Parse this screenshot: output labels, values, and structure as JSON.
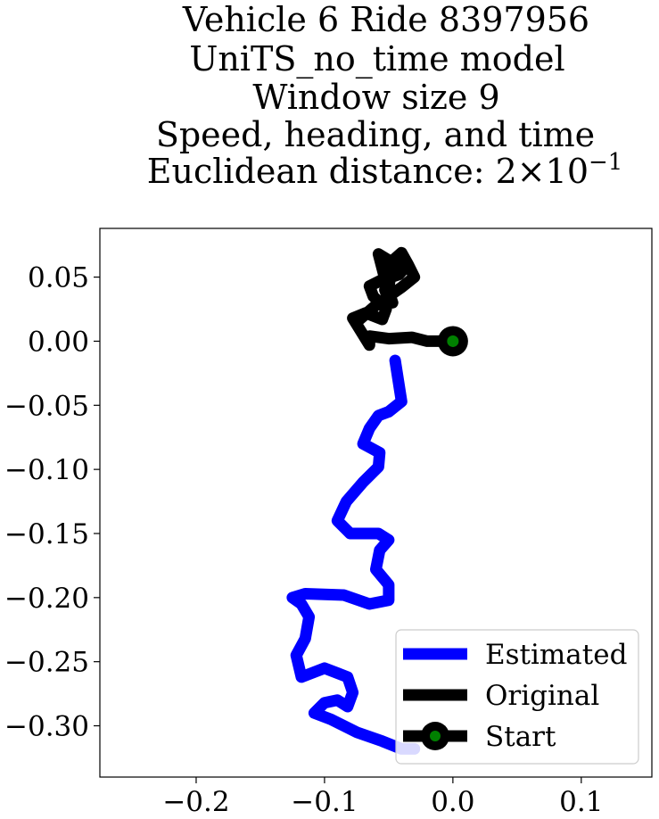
{
  "chart_data": {
    "type": "line",
    "title_lines": [
      "Vehicle 6 Ride 8397956",
      "UniTS_no_time model",
      "Window size 9",
      "Speed, heading, and time",
      "Euclidean distance: 2×10"
    ],
    "title_exponent": "−1",
    "xlim": [
      -0.275,
      0.155
    ],
    "ylim": [
      -0.34,
      0.088
    ],
    "xticks": [
      {
        "value": -0.2,
        "label": "−0.2"
      },
      {
        "value": -0.1,
        "label": "−0.1"
      },
      {
        "value": 0.0,
        "label": "0.0"
      },
      {
        "value": 0.1,
        "label": "0.1"
      }
    ],
    "yticks": [
      {
        "value": 0.05,
        "label": "0.05"
      },
      {
        "value": 0.0,
        "label": "0.00"
      },
      {
        "value": -0.05,
        "label": "−0.05"
      },
      {
        "value": -0.1,
        "label": "−0.10"
      },
      {
        "value": -0.15,
        "label": "−0.15"
      },
      {
        "value": -0.2,
        "label": "−0.20"
      },
      {
        "value": -0.25,
        "label": "−0.25"
      },
      {
        "value": -0.3,
        "label": "−0.30"
      }
    ],
    "series": [
      {
        "name": "Estimated",
        "color": "#0000ff",
        "x": [
          -0.03,
          -0.04,
          -0.055,
          -0.075,
          -0.095,
          -0.108,
          -0.1,
          -0.09,
          -0.082,
          -0.078,
          -0.082,
          -0.1,
          -0.118,
          -0.122,
          -0.115,
          -0.112,
          -0.118,
          -0.125,
          -0.115,
          -0.085,
          -0.065,
          -0.05,
          -0.05,
          -0.06,
          -0.057,
          -0.05,
          -0.058,
          -0.08,
          -0.09,
          -0.083,
          -0.07,
          -0.058,
          -0.057,
          -0.07,
          -0.065,
          -0.058,
          -0.05,
          -0.04,
          -0.045
        ],
        "y": [
          -0.318,
          -0.318,
          -0.312,
          -0.305,
          -0.295,
          -0.29,
          -0.282,
          -0.28,
          -0.285,
          -0.274,
          -0.262,
          -0.255,
          -0.262,
          -0.245,
          -0.232,
          -0.215,
          -0.205,
          -0.2,
          -0.197,
          -0.198,
          -0.205,
          -0.202,
          -0.19,
          -0.178,
          -0.163,
          -0.155,
          -0.15,
          -0.15,
          -0.14,
          -0.125,
          -0.11,
          -0.098,
          -0.087,
          -0.08,
          -0.068,
          -0.058,
          -0.055,
          -0.047,
          -0.015
        ]
      },
      {
        "name": "Original",
        "color": "#000000",
        "x": [
          0.0,
          -0.02,
          -0.032,
          -0.05,
          -0.065,
          -0.065,
          -0.078,
          -0.068,
          -0.055,
          -0.052,
          -0.062,
          -0.065,
          -0.055,
          -0.05,
          -0.048,
          -0.043,
          -0.035,
          -0.042,
          -0.048,
          -0.053,
          -0.05,
          -0.047,
          -0.052,
          -0.058,
          -0.048,
          -0.04,
          -0.035,
          -0.03,
          -0.04,
          -0.06,
          -0.075
        ],
        "y": [
          0.0,
          0.0,
          0.003,
          0.002,
          0.004,
          -0.003,
          0.018,
          0.022,
          0.017,
          0.025,
          0.035,
          0.043,
          0.048,
          0.042,
          0.055,
          0.066,
          0.06,
          0.052,
          0.05,
          0.04,
          0.032,
          0.03,
          0.045,
          0.068,
          0.062,
          0.069,
          0.06,
          0.05,
          0.042,
          0.028,
          0.015
        ]
      }
    ],
    "start_point": {
      "name": "Start",
      "x": 0.0,
      "y": 0.0,
      "marker_color": "#008000",
      "outline_color": "#000000"
    },
    "legend": {
      "position": "lower right",
      "entries": [
        "Estimated",
        "Original",
        "Start"
      ]
    },
    "grid": false
  }
}
